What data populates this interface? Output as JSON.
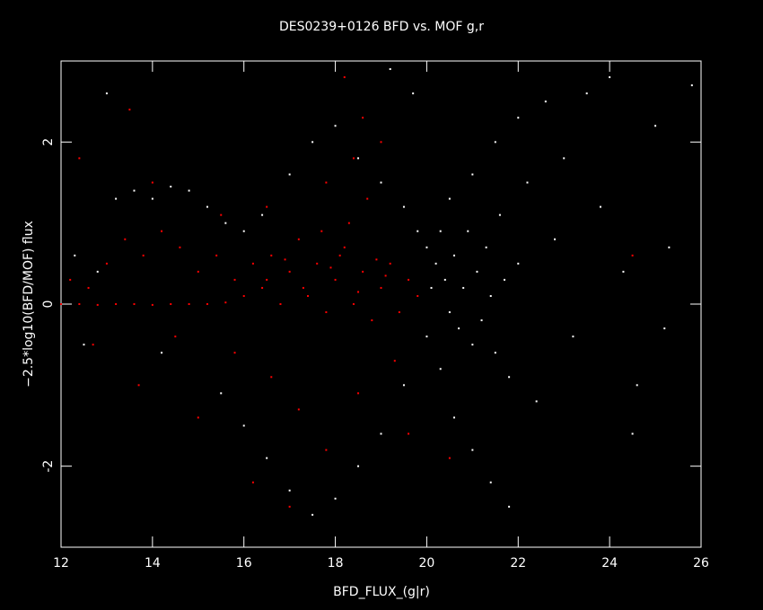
{
  "chart_data": {
    "type": "scatter",
    "title": "DES0239+0126 BFD vs. MOF g,r",
    "x_label": "BFD_FLUX_(g|r)",
    "y_label": "−2.5*log10(BFD/MOF) flux",
    "xlim": [
      12,
      26
    ],
    "xticks": [
      12,
      14,
      16,
      18,
      20,
      22,
      24,
      26
    ],
    "ylim": [
      -3,
      3
    ],
    "yticks": [
      -2,
      0,
      2
    ],
    "series": [
      {
        "color": "#ffffff",
        "x": [
          12.3,
          12.8,
          13.2,
          13.6,
          14.0,
          14.4,
          14.8,
          15.2,
          15.6,
          16.0,
          16.4,
          17.0,
          17.5,
          18.0,
          18.5,
          19.0,
          19.5,
          19.8,
          20.0,
          20.2,
          20.4,
          20.5,
          20.6,
          20.7,
          20.8,
          20.9,
          21.0,
          21.1,
          21.2,
          21.3,
          21.4,
          21.5,
          21.6,
          21.7,
          21.8,
          22.0,
          22.2,
          22.4,
          22.6,
          22.8,
          23.0,
          23.2,
          23.5,
          23.8,
          24.0,
          24.3,
          24.6,
          25.0,
          25.3,
          25.8,
          20.3,
          20.6,
          21.0,
          21.4,
          21.8,
          19.5,
          19.0,
          18.5,
          18.0,
          17.5,
          17.0,
          16.5,
          16.0,
          15.5,
          20.0,
          20.1,
          20.3,
          20.5,
          21.0,
          21.5,
          22.0,
          19.7,
          19.2,
          13.0,
          12.5,
          14.2,
          24.5,
          25.2
        ],
        "values": [
          0.6,
          0.4,
          1.3,
          1.4,
          1.3,
          1.45,
          1.4,
          1.2,
          1.0,
          0.9,
          1.1,
          1.6,
          2.0,
          2.2,
          1.8,
          1.5,
          1.2,
          0.9,
          0.7,
          0.5,
          0.3,
          -0.1,
          0.6,
          -0.3,
          0.2,
          0.9,
          -0.5,
          0.4,
          -0.2,
          0.7,
          0.1,
          -0.6,
          1.1,
          0.3,
          -0.9,
          0.5,
          1.5,
          -1.2,
          2.5,
          0.8,
          1.8,
          -0.4,
          2.6,
          1.2,
          2.8,
          0.4,
          -1.0,
          2.2,
          0.7,
          2.7,
          -0.8,
          -1.4,
          -1.8,
          -2.2,
          -2.5,
          -1.0,
          -1.6,
          -2.0,
          -2.4,
          -2.6,
          -2.3,
          -1.9,
          -1.5,
          -1.1,
          -0.4,
          0.2,
          0.9,
          1.3,
          1.6,
          2.0,
          2.3,
          2.6,
          2.9,
          2.6,
          -0.5,
          -0.6,
          -1.6,
          -0.3
        ]
      },
      {
        "color": "#ff0000",
        "x": [
          12.0,
          12.4,
          12.8,
          13.2,
          13.6,
          14.0,
          14.4,
          14.8,
          15.2,
          15.6,
          12.2,
          12.6,
          13.0,
          13.4,
          13.8,
          14.2,
          14.6,
          15.0,
          15.4,
          15.8,
          16.0,
          16.2,
          16.4,
          16.6,
          16.8,
          17.0,
          17.2,
          17.4,
          17.6,
          17.8,
          18.0,
          18.2,
          18.4,
          18.6,
          18.8,
          19.0,
          19.2,
          19.4,
          19.6,
          19.8,
          16.5,
          17.3,
          17.9,
          18.5,
          19.1,
          16.9,
          18.1,
          18.9,
          17.7,
          18.3,
          18.7,
          18.4,
          18.6,
          18.2,
          17.8,
          19.0,
          16.5,
          15.5,
          14.0,
          12.4,
          13.5,
          14.5,
          15.8,
          16.6,
          17.2,
          17.8,
          18.5,
          19.3,
          16.2,
          17.0,
          19.6,
          20.5,
          15.0,
          13.7,
          12.7,
          24.5
        ],
        "values": [
          0.0,
          0.0,
          -0.01,
          0.0,
          0.0,
          -0.01,
          0.0,
          0.0,
          0.0,
          0.02,
          0.3,
          0.2,
          0.5,
          0.8,
          0.6,
          0.9,
          0.7,
          0.4,
          0.6,
          0.3,
          0.1,
          0.5,
          0.2,
          0.6,
          0.0,
          0.4,
          0.8,
          0.1,
          0.5,
          -0.1,
          0.3,
          0.7,
          0.0,
          0.4,
          -0.2,
          0.2,
          0.5,
          -0.1,
          0.3,
          0.1,
          0.3,
          0.2,
          0.45,
          0.15,
          0.35,
          0.55,
          0.6,
          0.55,
          0.9,
          1.0,
          1.3,
          1.8,
          2.3,
          2.8,
          1.5,
          2.0,
          1.2,
          1.1,
          1.5,
          1.8,
          2.4,
          -0.4,
          -0.6,
          -0.9,
          -1.3,
          -1.8,
          -1.1,
          -0.7,
          -2.2,
          -2.5,
          -1.6,
          -1.9,
          -1.4,
          -1.0,
          -0.5,
          0.6
        ]
      }
    ]
  }
}
